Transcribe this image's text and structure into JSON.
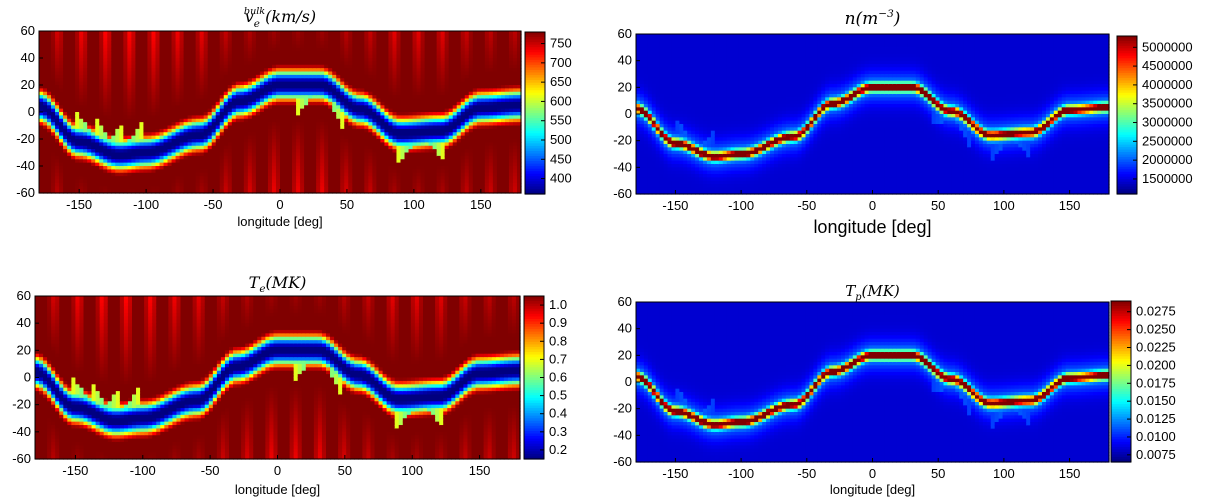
{
  "chart_data": [
    {
      "type": "heatmap",
      "title": "v_e^bulk (km/s)",
      "title_main": "v",
      "title_sub": "e",
      "title_sup": "bulk",
      "title_unit": "(km/s)",
      "xlabel": "longitude [deg]",
      "ylabel": "",
      "xlim": [
        -180,
        180
      ],
      "ylim": [
        -60,
        60
      ],
      "xticks": [
        -150,
        -100,
        -50,
        0,
        50,
        100,
        150
      ],
      "yticks": [
        -60,
        -40,
        -20,
        0,
        20,
        40,
        60
      ],
      "colorbar": {
        "range": [
          360,
          780
        ],
        "ticks": [
          "750",
          "700",
          "650",
          "600",
          "550",
          "500",
          "450",
          "400"
        ],
        "tick_values": [
          750,
          700,
          650,
          600,
          550,
          500,
          450,
          400
        ]
      },
      "colormap": "jet",
      "field": "velocity"
    },
    {
      "type": "heatmap",
      "title": "n(m^-3)",
      "title_main": "n(m",
      "title_sup": "−3",
      "title_unit": ")",
      "xlabel": "longitude [deg]",
      "ylabel": "",
      "xlim": [
        -180,
        180
      ],
      "ylim": [
        -60,
        60
      ],
      "xticks": [
        -150,
        -100,
        -50,
        0,
        50,
        100,
        150
      ],
      "yticks": [
        -60,
        -40,
        -20,
        0,
        20,
        40,
        60
      ],
      "colorbar": {
        "range": [
          1100000,
          5300000
        ],
        "ticks": [
          "5000000",
          "4500000",
          "4000000",
          "3500000",
          "3000000",
          "2500000",
          "2000000",
          "1500000"
        ],
        "tick_values": [
          5000000,
          4500000,
          4000000,
          3500000,
          3000000,
          2500000,
          2000000,
          1500000
        ]
      },
      "colormap": "jet",
      "field": "density"
    },
    {
      "type": "heatmap",
      "title": "T_e(MK)",
      "title_main": "T",
      "title_sub": "e",
      "title_unit": "(MK)",
      "xlabel": "longitude [deg]",
      "ylabel": "",
      "xlim": [
        -180,
        180
      ],
      "ylim": [
        -60,
        60
      ],
      "xticks": [
        -150,
        -100,
        -50,
        0,
        50,
        100,
        150
      ],
      "yticks": [
        -60,
        -40,
        -20,
        0,
        20,
        40,
        60
      ],
      "colorbar": {
        "range": [
          0.15,
          1.05
        ],
        "ticks": [
          "1.0",
          "0.9",
          "0.8",
          "0.7",
          "0.6",
          "0.5",
          "0.4",
          "0.3",
          "0.2"
        ],
        "tick_values": [
          1.0,
          0.9,
          0.8,
          0.7,
          0.6,
          0.5,
          0.4,
          0.3,
          0.2
        ]
      },
      "colormap": "jet",
      "field": "velocity"
    },
    {
      "type": "heatmap",
      "title": "T_p(MK)",
      "title_main": "T",
      "title_sub": "p",
      "title_unit": "(MK)",
      "xlabel": "longitude [deg]",
      "ylabel": "",
      "xlim": [
        -180,
        180
      ],
      "ylim": [
        -60,
        60
      ],
      "xticks": [
        -150,
        -100,
        -50,
        0,
        50,
        100,
        150
      ],
      "yticks": [
        -60,
        -40,
        -20,
        0,
        20,
        40,
        60
      ],
      "colorbar": {
        "range": [
          0.0065,
          0.029
        ],
        "ticks": [
          "0.0275",
          "0.0250",
          "0.0225",
          "0.0200",
          "0.0175",
          "0.0150",
          "0.0125",
          "0.0100",
          "0.0075"
        ],
        "tick_values": [
          0.0275,
          0.025,
          0.0225,
          0.02,
          0.0175,
          0.015,
          0.0125,
          0.01,
          0.0075
        ]
      },
      "colormap": "jet",
      "field": "density"
    }
  ],
  "current_sheet_latitude": {
    "longitude": [
      -180,
      -150,
      -120,
      -100,
      -60,
      -30,
      0,
      30,
      60,
      90,
      120,
      150,
      180
    ],
    "latitude": [
      4,
      -22,
      -32,
      -30,
      -17,
      8,
      20,
      20,
      2,
      -16,
      -14,
      3,
      5
    ]
  }
}
